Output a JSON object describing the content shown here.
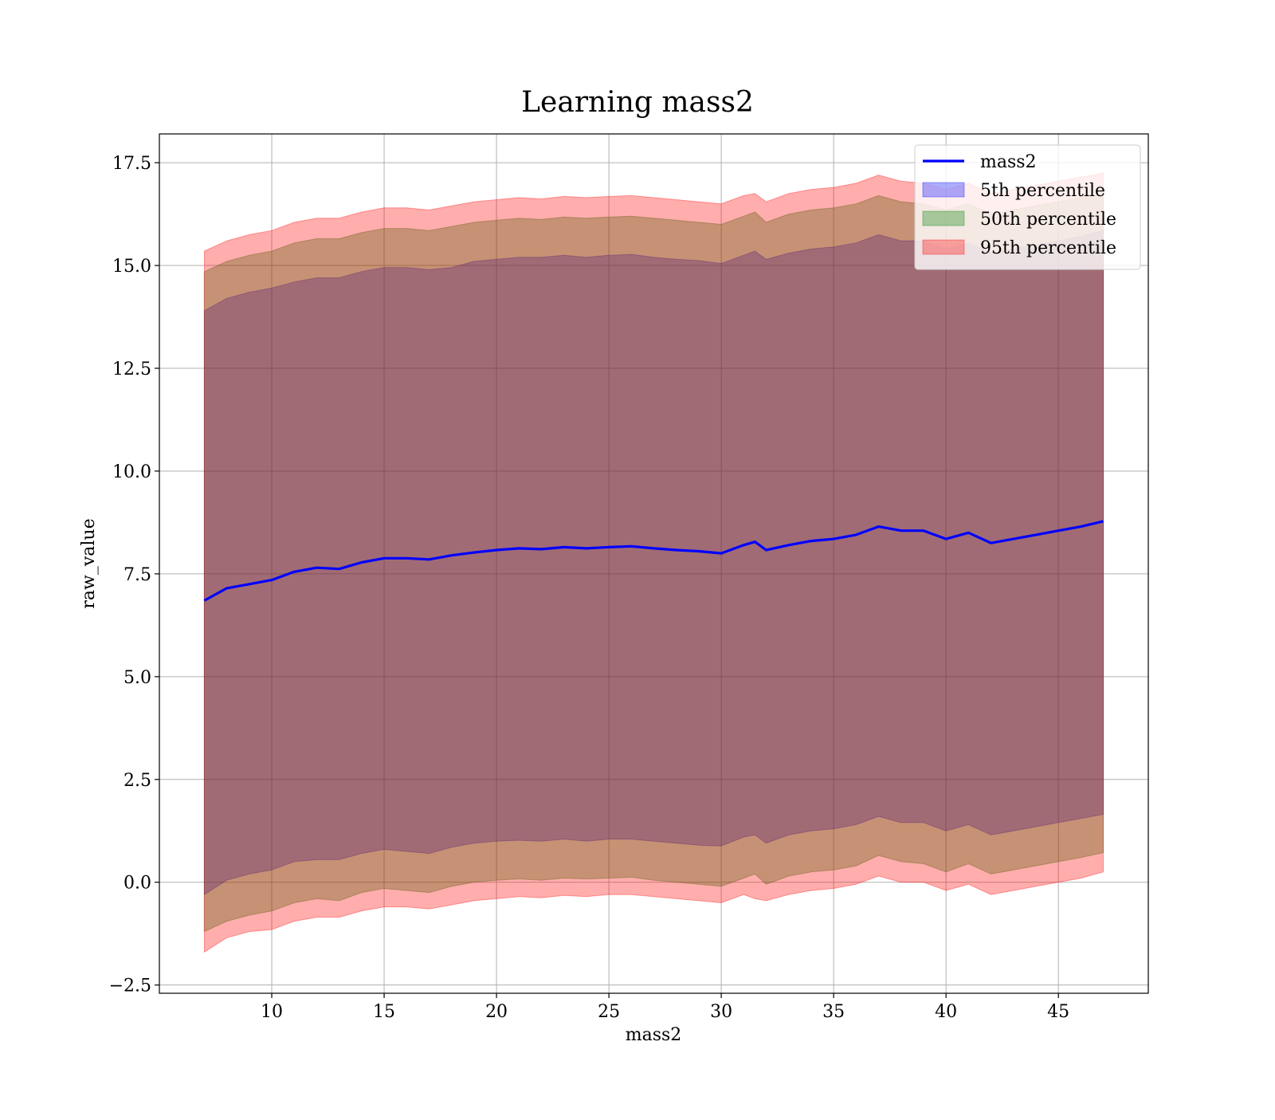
{
  "chart_data": {
    "type": "area",
    "title": "Learning mass2",
    "xlabel": "mass2",
    "ylabel": "raw_value",
    "xlim": [
      5,
      49
    ],
    "ylim": [
      -2.7,
      18.2
    ],
    "grid": true,
    "legend_position": "top-right",
    "x_ticks": [
      "10",
      "15",
      "20",
      "25",
      "30",
      "35",
      "40",
      "45"
    ],
    "x_tick_values": [
      10,
      15,
      20,
      25,
      30,
      35,
      40,
      45
    ],
    "y_ticks": [
      "−2.5",
      "0.0",
      "2.5",
      "5.0",
      "7.5",
      "10.0",
      "12.5",
      "15.0",
      "17.5"
    ],
    "y_tick_values": [
      -2.5,
      0,
      2.5,
      5,
      7.5,
      10,
      12.5,
      15,
      17.5
    ],
    "x": [
      7,
      8,
      9,
      10,
      11,
      12,
      13,
      14,
      15,
      16,
      17,
      18,
      19,
      20,
      21,
      22,
      23,
      24,
      25,
      26,
      27,
      28,
      29,
      30,
      31,
      31.5,
      32,
      33,
      34,
      35,
      36,
      37,
      38,
      39,
      40,
      41,
      42,
      43,
      44,
      45,
      46,
      47
    ],
    "series": [
      {
        "name": "mass2",
        "kind": "line",
        "color": "#0000ff",
        "values": [
          6.85,
          7.15,
          7.25,
          7.35,
          7.55,
          7.65,
          7.62,
          7.78,
          7.88,
          7.88,
          7.85,
          7.95,
          8.02,
          8.08,
          8.12,
          8.1,
          8.15,
          8.12,
          8.15,
          8.17,
          8.12,
          8.08,
          8.05,
          8.0,
          8.2,
          8.28,
          8.08,
          8.2,
          8.3,
          8.35,
          8.45,
          8.65,
          8.55,
          8.55,
          8.35,
          8.5,
          8.25,
          8.35,
          8.45,
          8.55,
          8.65,
          8.78
        ]
      },
      {
        "name": "5th percentile",
        "kind": "band",
        "color": "#0000ff",
        "lower": [
          -0.3,
          0.05,
          0.2,
          0.3,
          0.5,
          0.55,
          0.55,
          0.7,
          0.8,
          0.75,
          0.7,
          0.85,
          0.95,
          1.0,
          1.02,
          1.0,
          1.05,
          1.0,
          1.05,
          1.05,
          1.0,
          0.95,
          0.9,
          0.88,
          1.1,
          1.15,
          0.95,
          1.15,
          1.25,
          1.3,
          1.4,
          1.6,
          1.45,
          1.45,
          1.25,
          1.4,
          1.15,
          1.25,
          1.35,
          1.45,
          1.55,
          1.65
        ],
        "upper": [
          13.9,
          14.2,
          14.35,
          14.45,
          14.6,
          14.7,
          14.7,
          14.85,
          14.95,
          14.95,
          14.9,
          14.95,
          15.1,
          15.15,
          15.2,
          15.2,
          15.25,
          15.2,
          15.25,
          15.27,
          15.2,
          15.15,
          15.12,
          15.05,
          15.25,
          15.35,
          15.15,
          15.3,
          15.4,
          15.45,
          15.55,
          15.75,
          15.6,
          15.6,
          15.4,
          15.55,
          15.3,
          15.4,
          15.5,
          15.6,
          15.7,
          15.85
        ]
      },
      {
        "name": "50th percentile",
        "kind": "band",
        "color": "#008000",
        "lower": [
          -1.2,
          -0.95,
          -0.8,
          -0.7,
          -0.5,
          -0.4,
          -0.45,
          -0.25,
          -0.15,
          -0.2,
          -0.25,
          -0.1,
          0.0,
          0.05,
          0.08,
          0.05,
          0.1,
          0.08,
          0.1,
          0.12,
          0.05,
          0.0,
          -0.05,
          -0.1,
          0.1,
          0.2,
          -0.05,
          0.15,
          0.25,
          0.3,
          0.4,
          0.65,
          0.5,
          0.45,
          0.25,
          0.45,
          0.2,
          0.3,
          0.4,
          0.5,
          0.6,
          0.72
        ],
        "upper": [
          14.85,
          15.1,
          15.25,
          15.35,
          15.55,
          15.65,
          15.65,
          15.8,
          15.9,
          15.9,
          15.85,
          15.95,
          16.05,
          16.1,
          16.15,
          16.12,
          16.18,
          16.15,
          16.18,
          16.2,
          16.15,
          16.1,
          16.05,
          16.0,
          16.2,
          16.3,
          16.05,
          16.25,
          16.35,
          16.4,
          16.5,
          16.7,
          16.55,
          16.5,
          16.35,
          16.5,
          16.25,
          16.35,
          16.45,
          16.55,
          16.65,
          16.75
        ]
      },
      {
        "name": "95th percentile",
        "kind": "band",
        "color": "#ff0000",
        "lower": [
          -1.7,
          -1.35,
          -1.2,
          -1.15,
          -0.95,
          -0.85,
          -0.85,
          -0.7,
          -0.6,
          -0.6,
          -0.65,
          -0.55,
          -0.45,
          -0.4,
          -0.35,
          -0.38,
          -0.32,
          -0.35,
          -0.3,
          -0.3,
          -0.35,
          -0.4,
          -0.45,
          -0.5,
          -0.3,
          -0.4,
          -0.45,
          -0.3,
          -0.2,
          -0.15,
          -0.05,
          0.15,
          0.0,
          0.0,
          -0.2,
          -0.05,
          -0.3,
          -0.2,
          -0.1,
          0.0,
          0.1,
          0.25
        ],
        "upper": [
          15.35,
          15.6,
          15.75,
          15.85,
          16.05,
          16.15,
          16.15,
          16.3,
          16.4,
          16.4,
          16.35,
          16.45,
          16.55,
          16.6,
          16.65,
          16.62,
          16.68,
          16.65,
          16.68,
          16.7,
          16.65,
          16.6,
          16.55,
          16.5,
          16.7,
          16.75,
          16.55,
          16.75,
          16.85,
          16.9,
          17.0,
          17.2,
          17.05,
          17.0,
          16.85,
          17.0,
          16.75,
          16.85,
          16.95,
          17.05,
          17.15,
          17.25
        ]
      }
    ]
  }
}
